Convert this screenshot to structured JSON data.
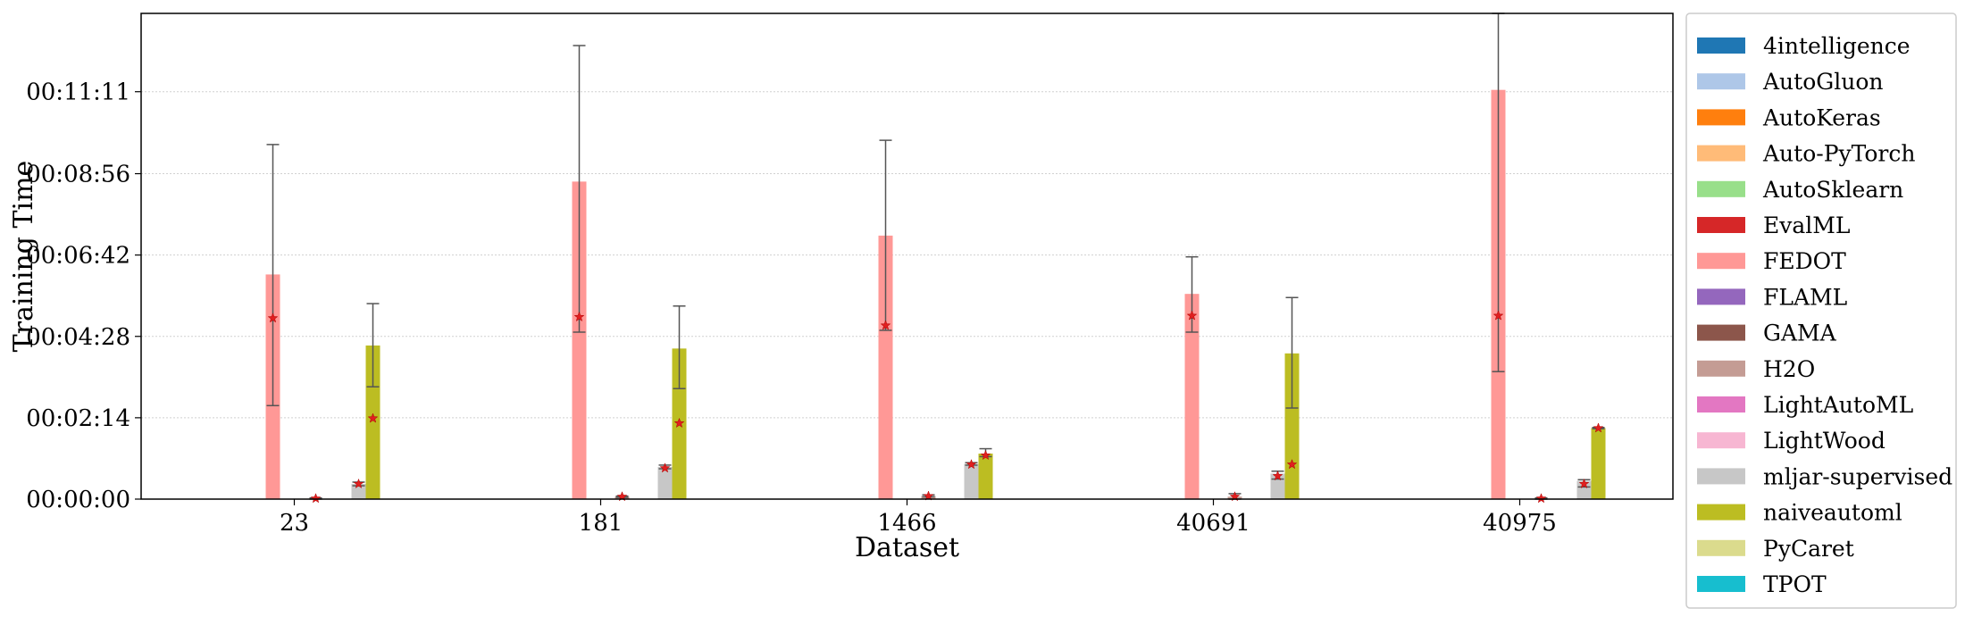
{
  "chart_data": {
    "type": "bar",
    "xlabel": "Dataset",
    "ylabel": "Training Time",
    "categories": [
      "23",
      "181",
      "1466",
      "40691",
      "40975"
    ],
    "y_unit": "seconds",
    "ylim": [
      0,
      800
    ],
    "yticks": [
      0,
      134,
      268,
      402,
      536,
      671
    ],
    "ytick_labels": [
      "00:00:00",
      "00:02:14",
      "00:04:28",
      "00:06:42",
      "00:08:56",
      "00:11:11"
    ],
    "grid": "horizontal",
    "legend_position": "right-outside",
    "series": [
      {
        "name": "4intelligence",
        "color": "#1f77b4",
        "values": [
          0,
          0,
          0,
          0,
          0
        ],
        "medians": [
          null,
          null,
          null,
          null,
          null
        ],
        "err_low": [
          null,
          null,
          null,
          null,
          null
        ],
        "err_high": [
          null,
          null,
          null,
          null,
          null
        ]
      },
      {
        "name": "AutoGluon",
        "color": "#aec7e8",
        "values": [
          0,
          0,
          0,
          0,
          0
        ],
        "medians": [
          null,
          null,
          null,
          null,
          null
        ],
        "err_low": [
          null,
          null,
          null,
          null,
          null
        ],
        "err_high": [
          null,
          null,
          null,
          null,
          null
        ]
      },
      {
        "name": "AutoKeras",
        "color": "#ff7f0e",
        "values": [
          0,
          0,
          0,
          0,
          0
        ],
        "medians": [
          null,
          null,
          null,
          null,
          null
        ],
        "err_low": [
          null,
          null,
          null,
          null,
          null
        ],
        "err_high": [
          null,
          null,
          null,
          null,
          null
        ]
      },
      {
        "name": "Auto-PyTorch",
        "color": "#ffbb78",
        "values": [
          0,
          0,
          0,
          0,
          0
        ],
        "medians": [
          null,
          null,
          null,
          null,
          null
        ],
        "err_low": [
          null,
          null,
          null,
          null,
          null
        ],
        "err_high": [
          null,
          null,
          null,
          null,
          null
        ]
      },
      {
        "name": "AutoSklearn",
        "color": "#98df8a",
        "values": [
          0,
          0,
          0,
          0,
          0
        ],
        "medians": [
          null,
          null,
          null,
          null,
          null
        ],
        "err_low": [
          null,
          null,
          null,
          null,
          null
        ],
        "err_high": [
          null,
          null,
          null,
          null,
          null
        ]
      },
      {
        "name": "EvalML",
        "color": "#d62728",
        "values": [
          0,
          0,
          0,
          0,
          0
        ],
        "medians": [
          null,
          null,
          null,
          null,
          null
        ],
        "err_low": [
          null,
          null,
          null,
          null,
          null
        ],
        "err_high": [
          null,
          null,
          null,
          null,
          null
        ]
      },
      {
        "name": "FEDOT",
        "color": "#ff9896",
        "values": [
          370,
          523,
          434,
          338,
          674
        ],
        "medians": [
          298,
          300,
          286,
          302,
          302
        ],
        "err_low": [
          154,
          275,
          278,
          275,
          210
        ],
        "err_high": [
          584,
          747,
          591,
          399,
          800
        ]
      },
      {
        "name": "FLAML",
        "color": "#9467bd",
        "values": [
          0,
          0,
          0,
          0,
          0
        ],
        "medians": [
          null,
          null,
          null,
          null,
          null
        ],
        "err_low": [
          null,
          null,
          null,
          null,
          null
        ],
        "err_high": [
          null,
          null,
          null,
          null,
          null
        ]
      },
      {
        "name": "GAMA",
        "color": "#8c564b",
        "values": [
          0,
          0,
          0,
          0,
          0
        ],
        "medians": [
          null,
          null,
          null,
          null,
          null
        ],
        "err_low": [
          null,
          null,
          null,
          null,
          null
        ],
        "err_high": [
          null,
          null,
          null,
          null,
          null
        ]
      },
      {
        "name": "H2O",
        "color": "#c49c94",
        "values": [
          1,
          4,
          5,
          4,
          1
        ],
        "medians": [
          1,
          4,
          5,
          4,
          1
        ],
        "err_low": [
          0,
          3,
          4,
          0,
          0
        ],
        "err_high": [
          2,
          5,
          7,
          9,
          2
        ]
      },
      {
        "name": "LightAutoML",
        "color": "#e377c2",
        "values": [
          0,
          0,
          0,
          0,
          0
        ],
        "medians": [
          null,
          null,
          null,
          null,
          null
        ],
        "err_low": [
          null,
          null,
          null,
          null,
          null
        ],
        "err_high": [
          null,
          null,
          null,
          null,
          null
        ]
      },
      {
        "name": "LightWood",
        "color": "#f7b6d2",
        "values": [
          0,
          0,
          0,
          0,
          0
        ],
        "medians": [
          null,
          null,
          null,
          null,
          null
        ],
        "err_low": [
          null,
          null,
          null,
          null,
          null
        ],
        "err_high": [
          null,
          null,
          null,
          null,
          null
        ]
      },
      {
        "name": "mljar-supervised",
        "color": "#c7c7c7",
        "values": [
          25,
          53,
          58,
          42,
          30
        ],
        "medians": [
          25,
          51,
          57,
          38,
          25
        ],
        "err_low": [
          22,
          50,
          56,
          33,
          20
        ],
        "err_high": [
          28,
          56,
          60,
          46,
          32
        ]
      },
      {
        "name": "naiveautoml",
        "color": "#bcbd22",
        "values": [
          253,
          248,
          75,
          240,
          117
        ],
        "medians": [
          133,
          125,
          72,
          57,
          117
        ],
        "err_low": [
          185,
          182,
          70,
          150,
          116
        ],
        "err_high": [
          322,
          318,
          83,
          332,
          118
        ]
      },
      {
        "name": "PyCaret",
        "color": "#dbdb8d",
        "values": [
          0,
          0,
          0,
          0,
          0
        ],
        "medians": [
          null,
          null,
          null,
          null,
          null
        ],
        "err_low": [
          null,
          null,
          null,
          null,
          null
        ],
        "err_high": [
          null,
          null,
          null,
          null,
          null
        ]
      },
      {
        "name": "TPOT",
        "color": "#17becf",
        "values": [
          0,
          0,
          0,
          0,
          0
        ],
        "medians": [
          null,
          null,
          null,
          null,
          null
        ],
        "err_low": [
          null,
          null,
          null,
          null,
          null
        ],
        "err_high": [
          null,
          null,
          null,
          null,
          null
        ]
      }
    ]
  }
}
